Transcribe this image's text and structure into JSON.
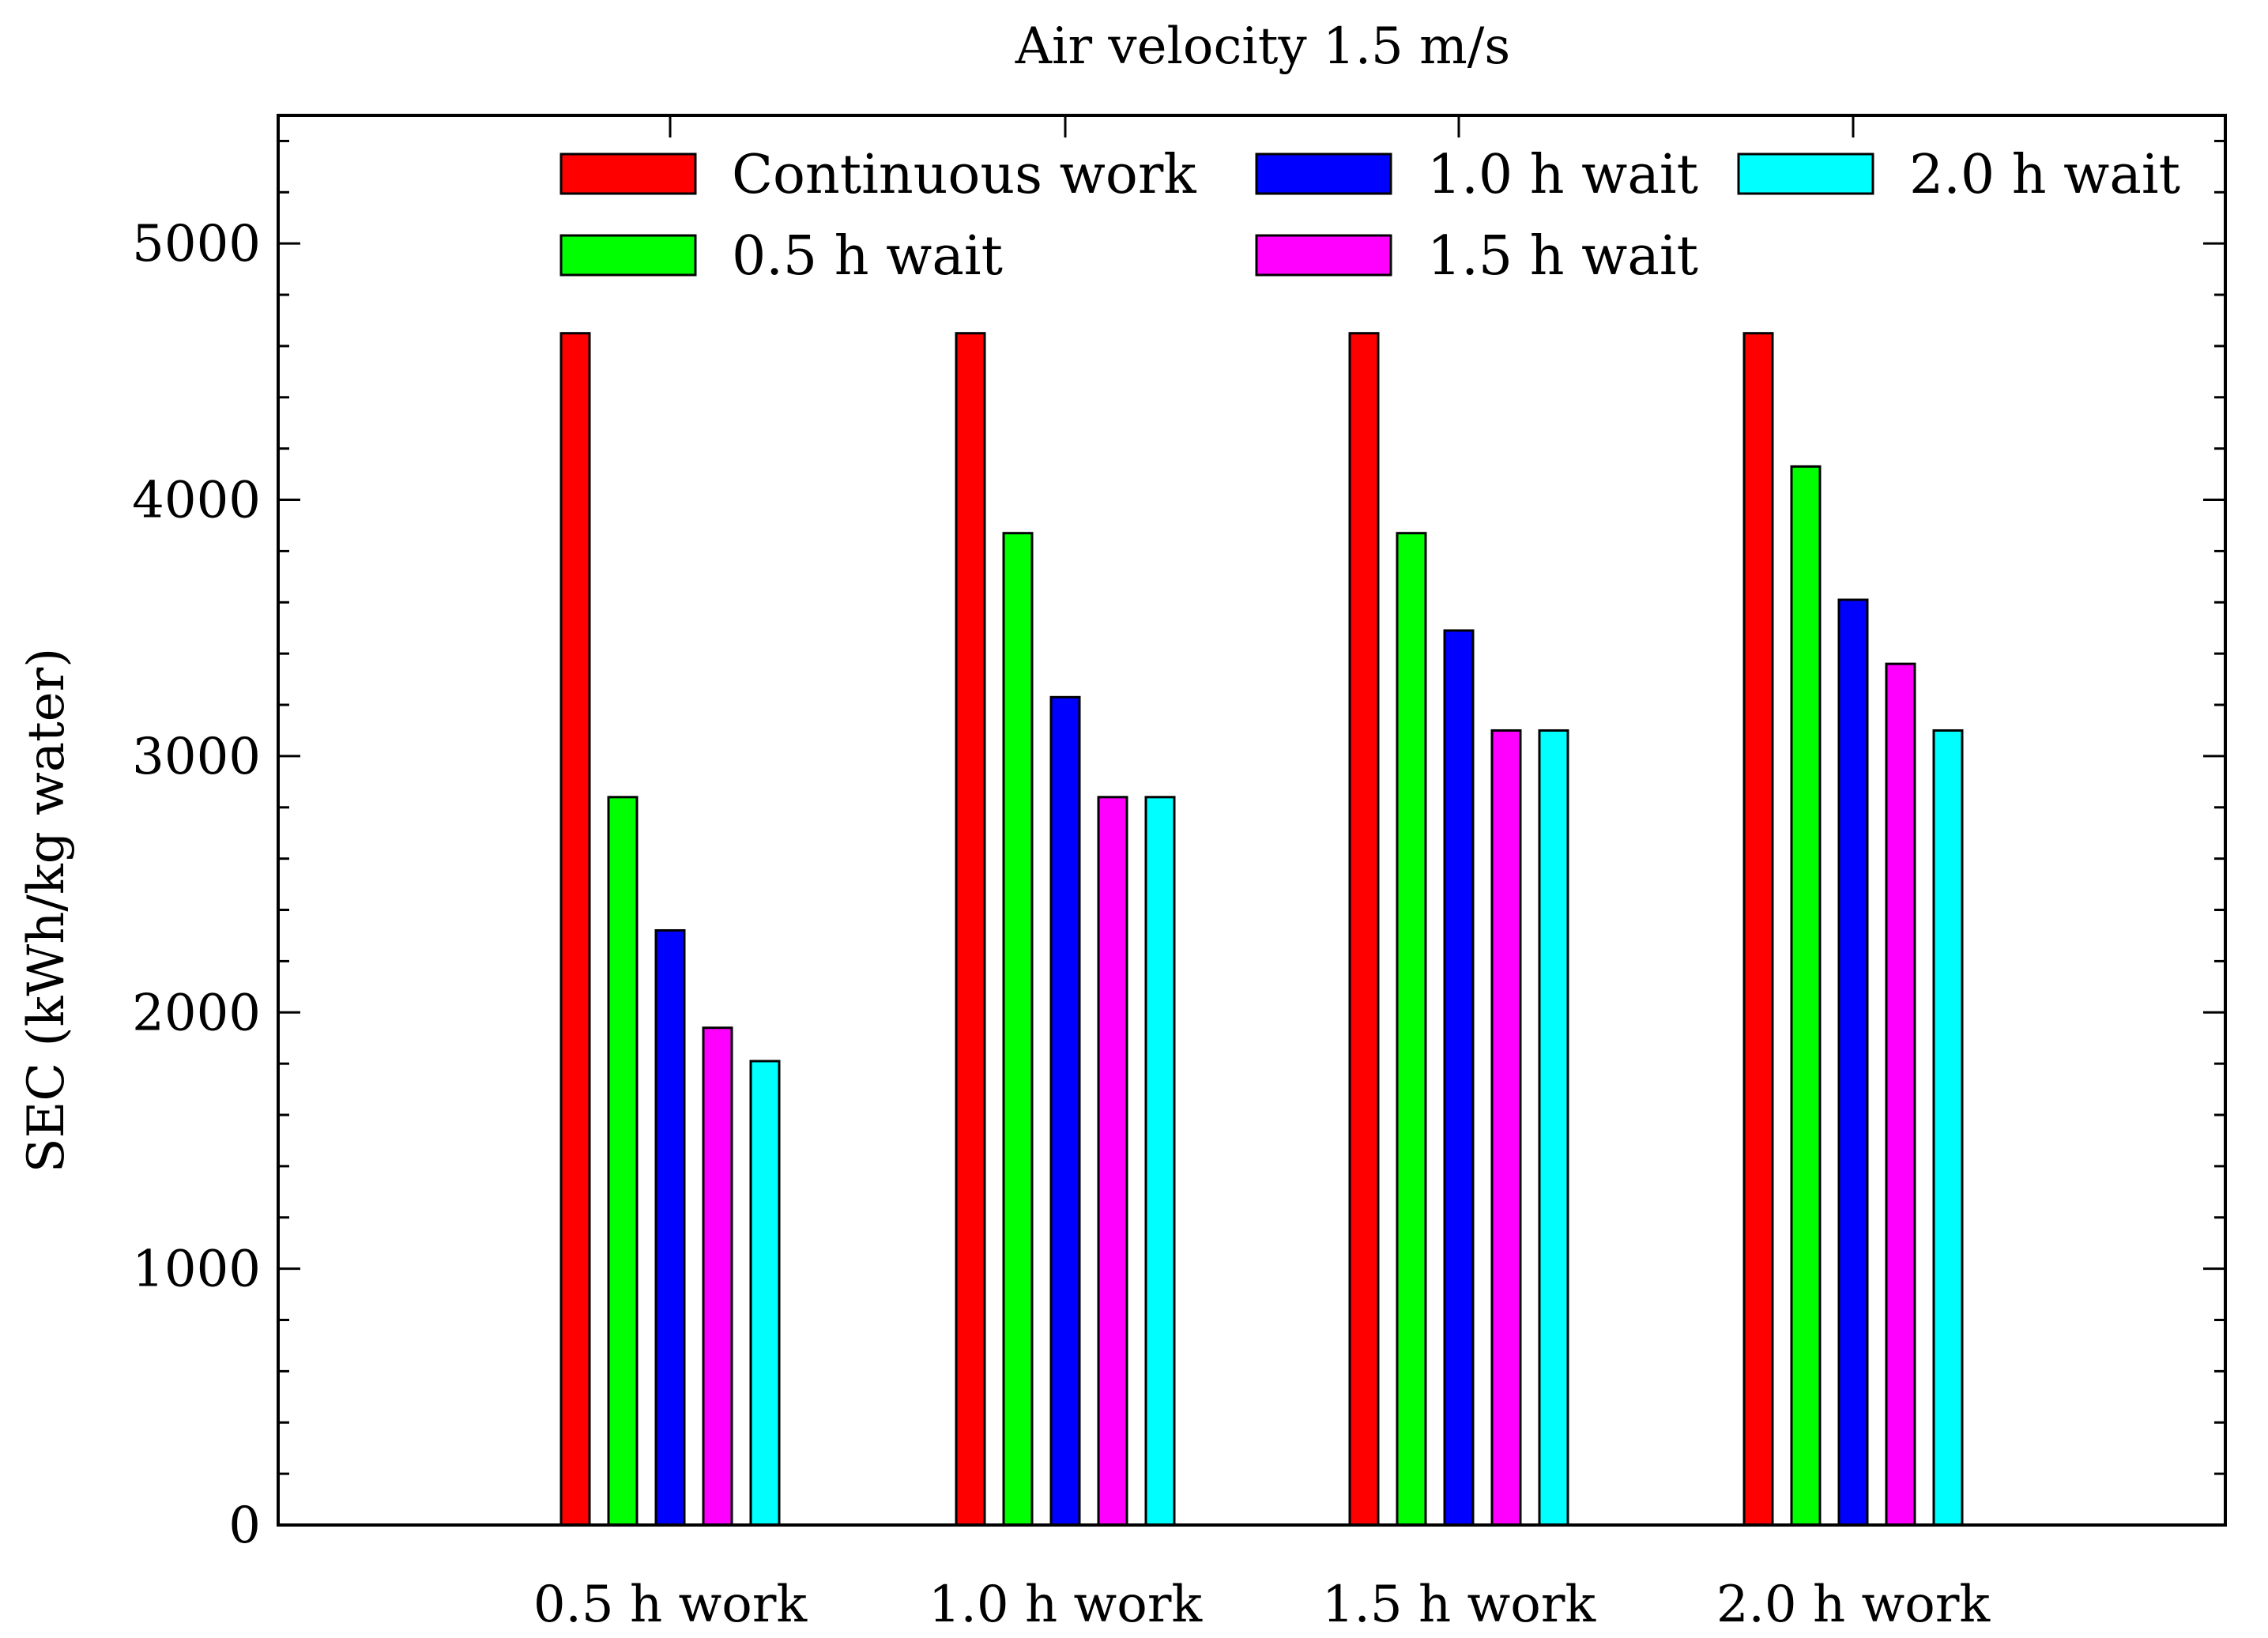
{
  "chart_data": {
    "type": "bar",
    "title": "Air velocity 1.5 m/s",
    "xlabel": "",
    "ylabel": "SEC (kWh/kg water)",
    "ylim": [
      0,
      5500
    ],
    "yticks": [
      0,
      1000,
      2000,
      3000,
      4000,
      5000
    ],
    "ytick_labels": [
      "0",
      "1000",
      "2000",
      "3000",
      "4000",
      "5000"
    ],
    "categories": [
      "0.5 h work",
      "1.0 h work",
      "1.5 h work",
      "2.0 h work"
    ],
    "grid": false,
    "legend_position": "top",
    "series": [
      {
        "name": "Continuous work",
        "color": "#ff0000",
        "values": [
          4650,
          4650,
          4650,
          4650
        ]
      },
      {
        "name": "0.5 h wait",
        "color": "#00ff00",
        "values": [
          2840,
          3870,
          3870,
          4130
        ]
      },
      {
        "name": "1.0 h wait",
        "color": "#0000ff",
        "values": [
          2320,
          3230,
          3490,
          3610
        ]
      },
      {
        "name": "1.5 h wait",
        "color": "#ff00ff",
        "values": [
          1940,
          2840,
          3100,
          3360
        ]
      },
      {
        "name": "2.0 h wait",
        "color": "#00ffff",
        "values": [
          1810,
          2840,
          3100,
          3100
        ]
      }
    ]
  }
}
